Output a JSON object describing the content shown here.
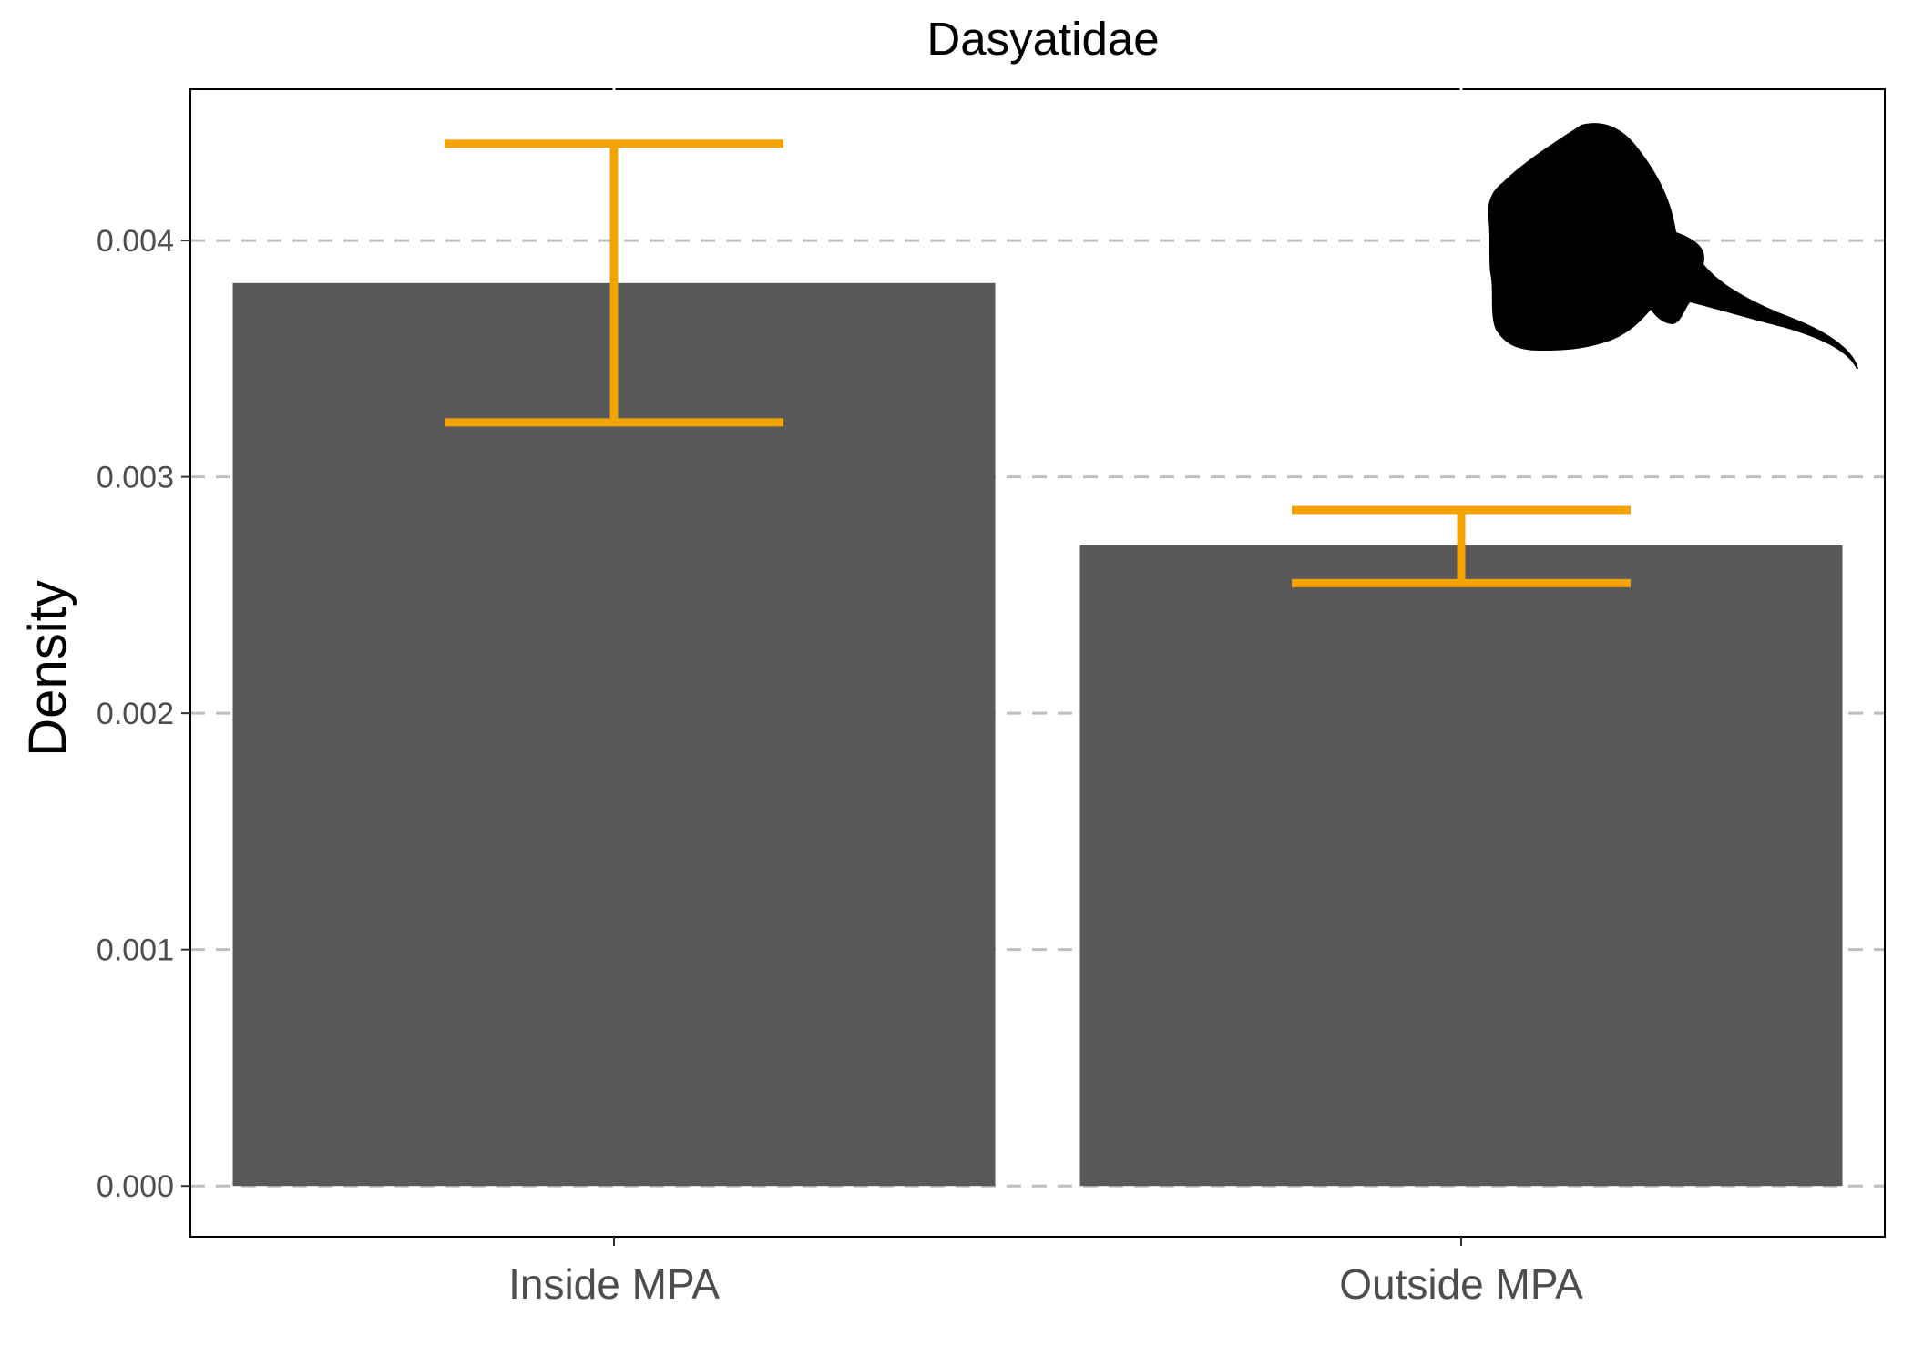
{
  "chart_data": {
    "type": "bar",
    "title": "Dasyatidae",
    "xlabel": "",
    "ylabel": "Density",
    "categories": [
      "Inside MPA",
      "Outside MPA"
    ],
    "values": [
      0.00382,
      0.00271
    ],
    "error_bars": [
      {
        "lower": 0.00323,
        "upper": 0.00441
      },
      {
        "lower": 0.00255,
        "upper": 0.00286
      }
    ],
    "ylim": [
      -0.000215,
      0.00464
    ],
    "yticks": [
      0.0,
      0.001,
      0.002,
      0.003,
      0.004
    ],
    "ytick_labels": [
      "0.000",
      "0.001",
      "0.002",
      "0.003",
      "0.004"
    ],
    "grid": {
      "major_y": true,
      "style": "dashed"
    },
    "legend": "none",
    "colors": {
      "bar": "#595959",
      "error": "#F5A300",
      "grid": "#BEBEBE",
      "panel_border": "#000000"
    },
    "icon": "stingray-silhouette-icon"
  }
}
